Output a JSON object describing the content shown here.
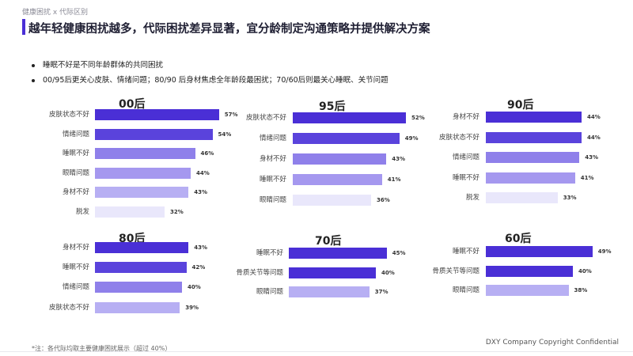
{
  "header": {
    "crumb": "健康困扰 x 代际区别",
    "title": "越年轻健康困扰越多，代际困扰差异显著，宜分龄制定沟通策略并提供解决方案"
  },
  "bullets": [
    "睡眠不好是不同年龄群体的共同困扰",
    "00/95后更关心皮肤、情绪问题；80/90 后身材焦虑全年龄段最困扰；70/60后则最关心睡眠、关节问题"
  ],
  "footnote": "*注：各代际均取主要健康困扰展示（超过 40%）",
  "copyright": "DXY Company Copyright Confidential",
  "colors": [
    "#4a2fd6",
    "#5a43dc",
    "#8f80ea",
    "#a598ef",
    "#b7aff3",
    "#e9e7fb"
  ],
  "chart_data": [
    {
      "type": "bar",
      "title": "00后",
      "categories": [
        "皮肤状态不好",
        "情绪问题",
        "睡眠不好",
        "眼睛问题",
        "身材不好",
        "脱发"
      ],
      "values": [
        57,
        54,
        46,
        44,
        43,
        32
      ],
      "value_labels": [
        "57%",
        "54%",
        "46%",
        "44%",
        "43%",
        "32%"
      ]
    },
    {
      "type": "bar",
      "title": "95后",
      "categories": [
        "皮肤状态不好",
        "情绪问题",
        "身材不好",
        "睡眠不好",
        "眼睛问题"
      ],
      "values": [
        52,
        49,
        43,
        41,
        36
      ],
      "value_labels": [
        "52%",
        "49%",
        "43%",
        "41%",
        "36%"
      ]
    },
    {
      "type": "bar",
      "title": "90后",
      "categories": [
        "身材不好",
        "皮肤状态不好",
        "情绪问题",
        "睡眠不好",
        "脱发"
      ],
      "values": [
        44,
        44,
        43,
        41,
        33
      ],
      "value_labels": [
        "44%",
        "44%",
        "43%",
        "41%",
        "33%"
      ]
    },
    {
      "type": "bar",
      "title": "80后",
      "categories": [
        "身材不好",
        "睡眠不好",
        "情绪问题",
        "皮肤状态不好"
      ],
      "values": [
        43,
        42,
        40,
        39
      ],
      "value_labels": [
        "43%",
        "42%",
        "40%",
        "39%"
      ]
    },
    {
      "type": "bar",
      "title": "70后",
      "categories": [
        "睡眠不好",
        "骨质关节等问题",
        "眼睛问题"
      ],
      "values": [
        45,
        40,
        37
      ],
      "value_labels": [
        "45%",
        "40%",
        "37%"
      ]
    },
    {
      "type": "bar",
      "title": "60后",
      "categories": [
        "睡眠不好",
        "骨质关节等问题",
        "眼睛问题"
      ],
      "values": [
        49,
        40,
        38
      ],
      "value_labels": [
        "49%",
        "40%",
        "38%"
      ]
    }
  ]
}
